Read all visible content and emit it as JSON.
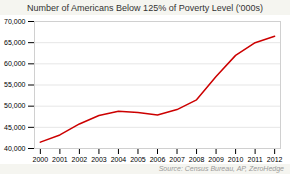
{
  "chart_data": {
    "type": "line",
    "title": "Number of Americans Below 125% of Poverty Level ('000s)",
    "annotations": [
      "Source: Census Bureau, AP, ZeroHedge"
    ],
    "x": [
      2000,
      2001,
      2002,
      2003,
      2004,
      2005,
      2006,
      2007,
      2008,
      2009,
      2010,
      2011,
      2012
    ],
    "values": [
      41500,
      43200,
      45800,
      47800,
      48800,
      48500,
      47900,
      49200,
      51500,
      57000,
      62000,
      65000,
      66500
    ],
    "color": "#cc0000",
    "xlim": [
      1999.7,
      2012.3
    ],
    "xticks": [
      2000,
      2001,
      2002,
      2003,
      2004,
      2005,
      2006,
      2007,
      2008,
      2009,
      2010,
      2011,
      2012
    ],
    "ylim": [
      40000,
      70000
    ],
    "yticks": [
      {
        "value": 40000,
        "label": "40,000"
      },
      {
        "value": 45000,
        "label": "45,000"
      },
      {
        "value": 50000,
        "label": "50,000"
      },
      {
        "value": 55000,
        "label": "55,000"
      },
      {
        "value": 60000,
        "label": "60,000"
      },
      {
        "value": 65000,
        "label": "65,000"
      },
      {
        "value": 70000,
        "label": "70,000"
      }
    ],
    "grid": true
  }
}
